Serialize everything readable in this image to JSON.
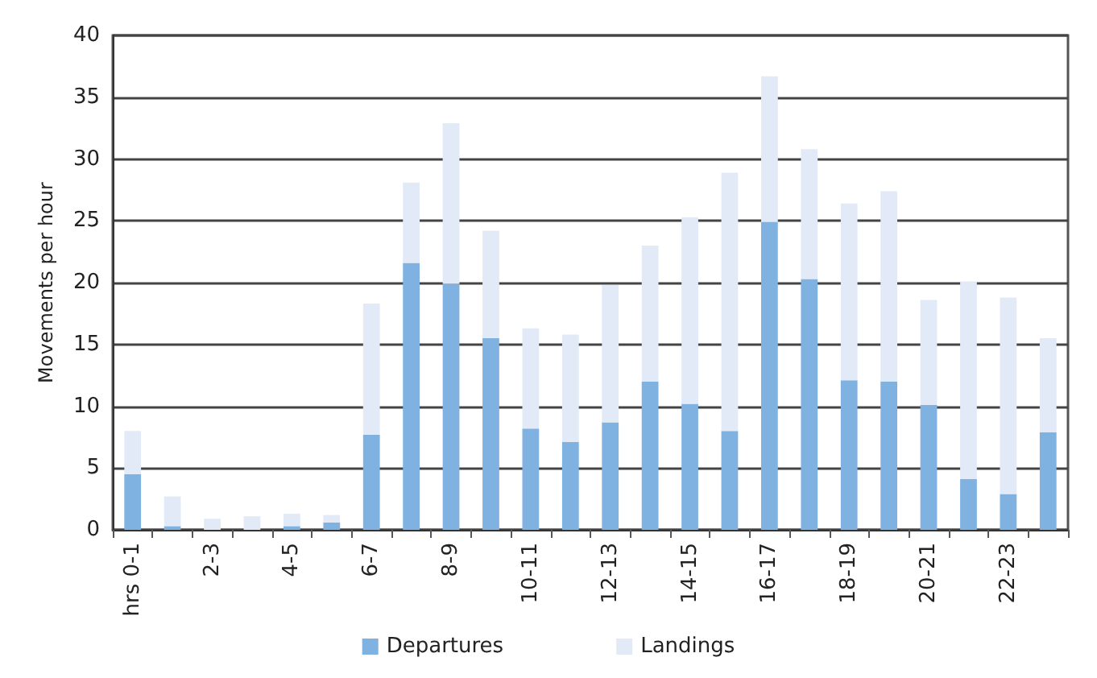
{
  "chart_data": {
    "type": "bar",
    "stacked": true,
    "ylabel": "Movements per hour",
    "categories": [
      "hrs 0-1",
      null,
      "2-3",
      null,
      "4-5",
      null,
      "6-7",
      null,
      "8-9",
      null,
      "10-11",
      null,
      "12-13",
      null,
      "14-15",
      null,
      "16-17",
      null,
      "18-19",
      null,
      "20-21",
      null,
      "22-23",
      null
    ],
    "series": [
      {
        "name": "Departures",
        "color": "#7fb2e0",
        "values": [
          4.5,
          0.3,
          0,
          0,
          0.3,
          0.6,
          7.7,
          21.6,
          19.9,
          15.5,
          8.2,
          7.1,
          8.7,
          12,
          10.2,
          8,
          24.9,
          20.3,
          12.1,
          12,
          10.1,
          4.1,
          2.9,
          7.9
        ]
      },
      {
        "name": "Landings",
        "color": "#e2eaf7",
        "values": [
          3.5,
          2.4,
          0.9,
          1.1,
          1,
          0.6,
          10.6,
          6.5,
          13,
          8.7,
          8.1,
          8.7,
          11.1,
          11,
          15.1,
          20.9,
          11.8,
          10.5,
          14.3,
          15.4,
          8.5,
          16,
          15.9,
          7.6
        ]
      }
    ],
    "ylim": [
      0,
      40
    ],
    "yticks": [
      0,
      5,
      10,
      15,
      20,
      25,
      30,
      35,
      40
    ],
    "grid": "y",
    "legend": "bottom"
  }
}
